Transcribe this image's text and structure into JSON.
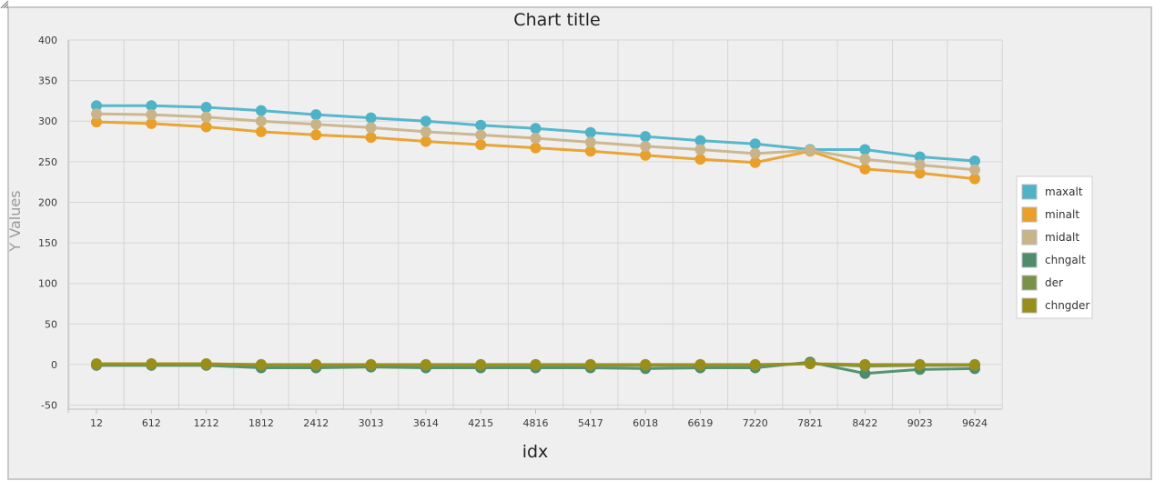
{
  "chart_data": {
    "type": "line",
    "title": "Chart title",
    "xlabel": "idx",
    "ylabel": "Y Values",
    "categories": [
      "12",
      "612",
      "1212",
      "1812",
      "2412",
      "3013",
      "3614",
      "4215",
      "4816",
      "5417",
      "6018",
      "6619",
      "7220",
      "7821",
      "8422",
      "9023",
      "9624"
    ],
    "ylim": [
      -55,
      400
    ],
    "yticks": [
      400,
      350,
      300,
      250,
      200,
      150,
      100,
      50,
      0,
      -50
    ],
    "grid": true,
    "legend_position": "right",
    "series": [
      {
        "name": "maxalt",
        "color": "#4fb3c8",
        "values": [
          319,
          319,
          317,
          313,
          308,
          304,
          300,
          295,
          291,
          286,
          281,
          276,
          272,
          265,
          265,
          256,
          251
        ]
      },
      {
        "name": "minalt",
        "color": "#e8a02a",
        "values": [
          299,
          297,
          293,
          287,
          283,
          280,
          275,
          271,
          267,
          263,
          258,
          253,
          249,
          263,
          241,
          236,
          229
        ]
      },
      {
        "name": "midalt",
        "color": "#c9b48a",
        "values": [
          309,
          308,
          305,
          300,
          296,
          292,
          287,
          283,
          279,
          274,
          269,
          265,
          260,
          264,
          253,
          246,
          240
        ]
      },
      {
        "name": "chngalt",
        "color": "#4e8c6a",
        "values": [
          -1,
          -1,
          -1,
          -4,
          -4,
          -3,
          -4,
          -4,
          -4,
          -4,
          -5,
          -4,
          -4,
          3,
          -11,
          -6,
          -5
        ]
      },
      {
        "name": "der",
        "color": "#7a9248",
        "values": [
          0,
          0,
          0,
          -1,
          -1,
          -1,
          -1,
          -1,
          -1,
          -1,
          -1,
          -1,
          -1,
          1,
          -2,
          -1,
          -1
        ]
      },
      {
        "name": "chngder",
        "color": "#9a8e1a",
        "values": [
          1,
          1,
          1,
          0,
          0,
          0,
          0,
          0,
          0,
          0,
          0,
          0,
          0,
          1,
          0,
          0,
          0
        ]
      }
    ]
  }
}
